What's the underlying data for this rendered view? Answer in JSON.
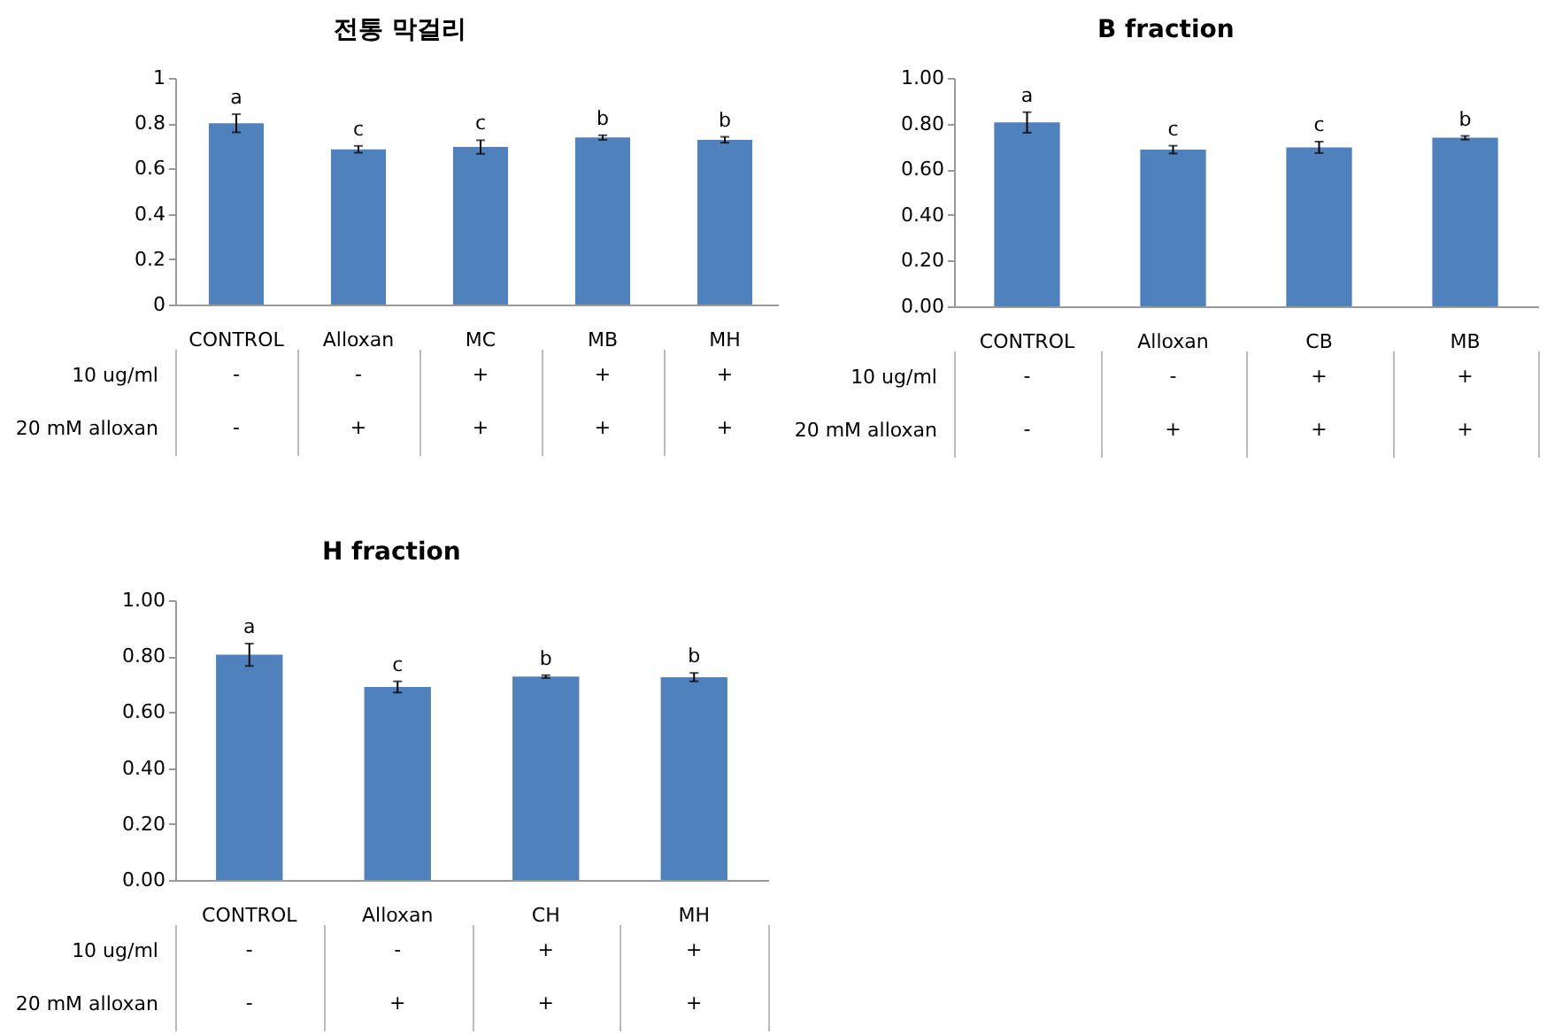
{
  "chart_data": [
    {
      "type": "bar",
      "title": "전통 막걸리",
      "categories": [
        "CONTROL",
        "Alloxan",
        "MC",
        "MB",
        "MH"
      ],
      "values": [
        0.8,
        0.685,
        0.695,
        0.737,
        0.727
      ],
      "errors": [
        0.04,
        0.015,
        0.03,
        0.01,
        0.013
      ],
      "value_labels": [
        "a",
        "c",
        "c",
        "b",
        "b"
      ],
      "color": "#4f81bd",
      "ylim": [
        0,
        1
      ],
      "yticks": [
        0,
        0.2,
        0.4,
        0.6,
        0.8,
        1
      ],
      "annotations": [
        "10 ug/ml",
        "-",
        "-",
        "+",
        "+",
        "+",
        "20 mM alloxan",
        "-",
        "+",
        "+",
        "+",
        "+"
      ]
    },
    {
      "type": "bar",
      "title": "B fraction",
      "categories": [
        "CONTROL",
        "Alloxan",
        "CB",
        "MB"
      ],
      "values": [
        0.805,
        0.686,
        0.696,
        0.738
      ],
      "errors": [
        0.045,
        0.017,
        0.025,
        0.008
      ],
      "value_labels": [
        "a",
        "c",
        "c",
        "b"
      ],
      "color": "#4f81bd",
      "ylim": [
        0,
        1
      ],
      "yticks": [
        {
          "value": 0,
          "label": "0.00"
        },
        {
          "value": 0.2,
          "label": "0.20"
        },
        {
          "value": 0.4,
          "label": "0.40"
        },
        {
          "value": 0.6,
          "label": "0.60"
        },
        {
          "value": 0.8,
          "label": "0.80"
        },
        {
          "value": 1,
          "label": "1.00"
        }
      ],
      "annotations": [
        "10 ug/ml",
        "-",
        "-",
        "+",
        "+",
        "20 mM alloxan",
        "-",
        "+",
        "+",
        "+"
      ]
    },
    {
      "type": "bar",
      "title": "H fraction",
      "categories": [
        "CONTROL",
        "Alloxan",
        "CH",
        "MH"
      ],
      "values": [
        0.805,
        0.69,
        0.727,
        0.725
      ],
      "errors": [
        0.04,
        0.02,
        0.005,
        0.015
      ],
      "value_labels": [
        "a",
        "c",
        "b",
        "b"
      ],
      "color": "#4f81bd",
      "ylim": [
        0,
        1
      ],
      "yticks": [
        {
          "value": 0,
          "label": "0.00"
        },
        {
          "value": 0.2,
          "label": "0.20"
        },
        {
          "value": 0.4,
          "label": "0.40"
        },
        {
          "value": 0.6,
          "label": "0.60"
        },
        {
          "value": 0.8,
          "label": "0.80"
        },
        {
          "value": 1,
          "label": "1.00"
        }
      ],
      "annotations": [
        "10 ug/ml",
        "-",
        "-",
        "+",
        "+",
        "20 mM alloxan",
        "-",
        "+",
        "+",
        "+"
      ]
    }
  ]
}
